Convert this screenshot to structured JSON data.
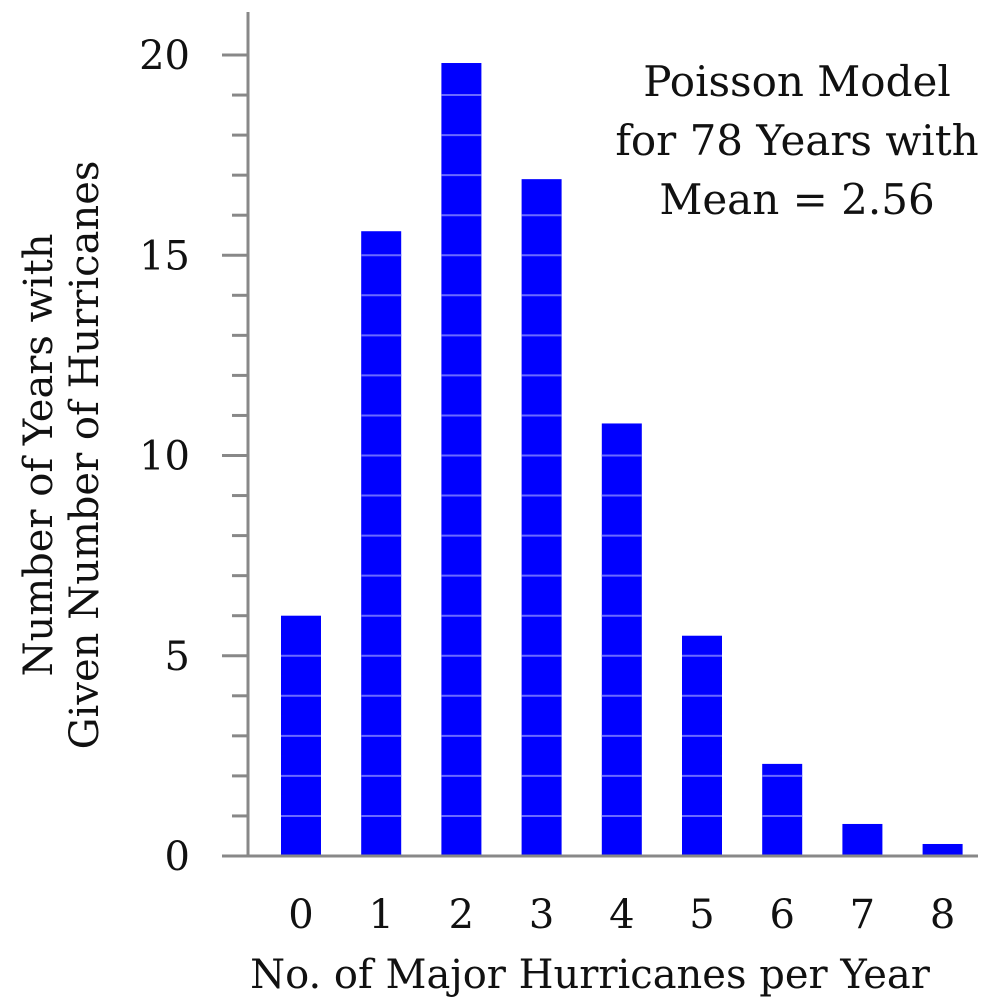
{
  "chart_data": {
    "type": "bar",
    "categories": [
      "0",
      "1",
      "2",
      "3",
      "4",
      "5",
      "6",
      "7",
      "8"
    ],
    "values": [
      6.0,
      15.6,
      19.8,
      16.9,
      10.8,
      5.5,
      2.3,
      0.8,
      0.3
    ],
    "xlabel": "No. of Major Hurricanes per Year",
    "ylabel_lines": [
      "Number of Years with",
      "Given Number of Hurricanes"
    ],
    "yticks": [
      "0",
      "5",
      "10",
      "15",
      "20"
    ],
    "ylim": [
      0,
      20.6
    ],
    "annotation_lines": [
      "Poisson Model",
      "for 78 Years with",
      "Mean = 2.56"
    ],
    "grid": "horizontal minor gridlines visible through bars",
    "colors": {
      "bar": "#0000ff",
      "axis": "#888888",
      "gridline": "#6a6aff"
    }
  }
}
